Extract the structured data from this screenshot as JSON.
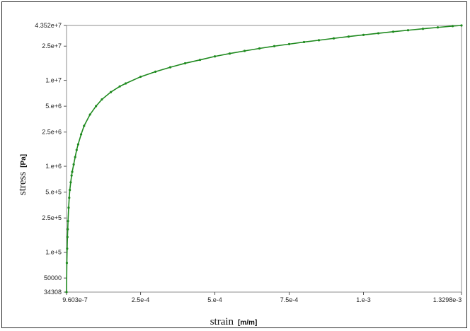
{
  "chart_data": {
    "type": "line",
    "xlabel": "strain",
    "xunit": "[m/m]",
    "ylabel": "stress",
    "yunit": "[Pa]",
    "xscale": "linear",
    "yscale": "log",
    "xlim": [
      9.603e-07,
      0.0013298
    ],
    "ylim": [
      34308,
      43520000
    ],
    "grid": false,
    "x_ticks": [
      {
        "value": 9.603e-07,
        "label": "9.603e-7"
      },
      {
        "value": 0.00025,
        "label": "2.5e-4"
      },
      {
        "value": 0.0005,
        "label": "5.e-4"
      },
      {
        "value": 0.00075,
        "label": "7.5e-4"
      },
      {
        "value": 0.001,
        "label": "1.e-3"
      },
      {
        "value": 0.0013298,
        "label": "1.3298e-3"
      }
    ],
    "y_ticks": [
      {
        "value": 34308,
        "label": "34308"
      },
      {
        "value": 50000,
        "label": "50000"
      },
      {
        "value": 100000,
        "label": "1.e+5"
      },
      {
        "value": 250000,
        "label": "2.5e+5"
      },
      {
        "value": 500000,
        "label": "5.e+5"
      },
      {
        "value": 1000000,
        "label": "1.e+6"
      },
      {
        "value": 2500000,
        "label": "2.5e+6"
      },
      {
        "value": 5000000,
        "label": "5.e+6"
      },
      {
        "value": 10000000,
        "label": "1.e+7"
      },
      {
        "value": 25000000,
        "label": "2.5e+7"
      },
      {
        "value": 43520000,
        "label": "4.352e+7"
      }
    ],
    "series": [
      {
        "color": "#1f8a1f",
        "x": [
          9.603e-07,
          2e-06,
          3e-06,
          4e-06,
          5e-06,
          6e-06,
          8e-06,
          1e-05,
          1.2e-05,
          1.5e-05,
          1.8e-05,
          2e-05,
          2.5e-05,
          3e-05,
          3.5e-05,
          4e-05,
          5e-05,
          6e-05,
          8e-05,
          0.0001,
          0.00012,
          0.00015,
          0.00018,
          0.0002,
          0.00025,
          0.0003,
          0.00035,
          0.0004,
          0.00045,
          0.0005,
          0.00055,
          0.0006,
          0.00065,
          0.0007,
          0.00075,
          0.0008,
          0.00085,
          0.0009,
          0.00095,
          0.001,
          0.00105,
          0.0011,
          0.00115,
          0.0012,
          0.00125,
          0.0013,
          0.0013298
        ],
        "y": [
          34308,
          75000,
          110000,
          150000,
          185000,
          230000,
          330000,
          430000,
          530000,
          650000,
          780000,
          860000,
          1050000,
          1280000,
          1550000,
          1800000,
          2350000,
          2950000,
          4000000,
          5000000,
          6000000,
          7300000,
          8500000,
          9200000,
          11000000,
          12600000,
          14200000,
          15800000,
          17300000,
          19000000,
          20500000,
          22000000,
          23500000,
          25000000,
          26400000,
          27900000,
          29300000,
          30800000,
          32300000,
          33800000,
          35300000,
          36800000,
          38300000,
          39800000,
          41300000,
          42800000,
          43520000
        ]
      }
    ]
  }
}
